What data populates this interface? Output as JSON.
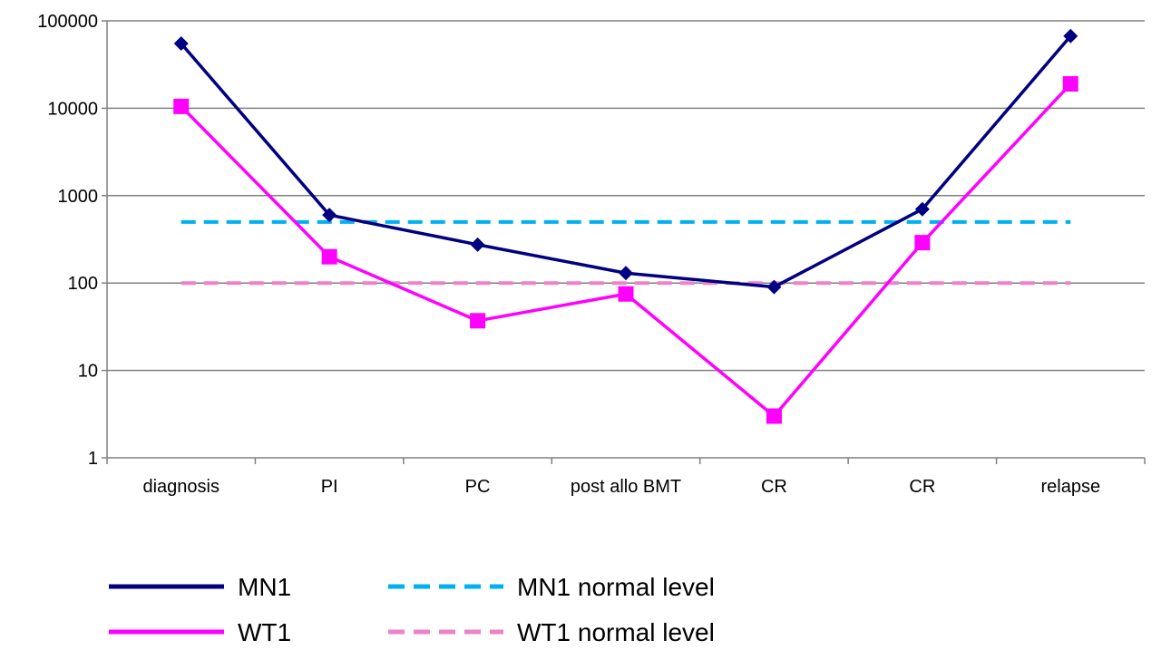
{
  "chart_data": {
    "type": "line",
    "title": "",
    "xlabel": "",
    "ylabel": "",
    "y_scale": "log",
    "ylim": [
      1,
      100000
    ],
    "yticks": [
      1,
      10,
      100,
      1000,
      10000,
      100000
    ],
    "ytick_labels": [
      "1",
      "10",
      "100",
      "1000",
      "10000",
      "100000"
    ],
    "grid": true,
    "categories": [
      "diagnosis",
      "PI",
      "PC",
      "post allo BMT",
      "CR",
      "CR",
      "relapse"
    ],
    "series": [
      {
        "name": "MN1",
        "values": [
          55000,
          600,
          275,
          130,
          90,
          700,
          67000
        ],
        "color": "#000080",
        "style": "solid",
        "marker": "diamond"
      },
      {
        "name": "WT1",
        "values": [
          10500,
          200,
          37,
          75,
          3,
          290,
          19000
        ],
        "color": "#ff00ff",
        "style": "solid",
        "marker": "square"
      }
    ],
    "reference_lines": [
      {
        "name": "MN1 normal level",
        "value": 500,
        "color": "#00b0f0",
        "style": "dashed"
      },
      {
        "name": "WT1 normal level",
        "value": 100,
        "color": "#ee82c8",
        "style": "dashed"
      }
    ],
    "legend_position": "bottom"
  }
}
